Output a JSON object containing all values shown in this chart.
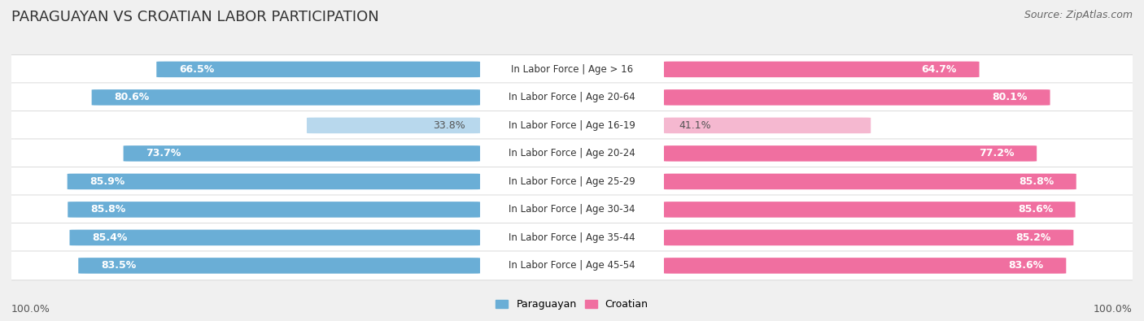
{
  "title": "PARAGUAYAN VS CROATIAN LABOR PARTICIPATION",
  "source": "Source: ZipAtlas.com",
  "categories": [
    "In Labor Force | Age > 16",
    "In Labor Force | Age 20-64",
    "In Labor Force | Age 16-19",
    "In Labor Force | Age 20-24",
    "In Labor Force | Age 25-29",
    "In Labor Force | Age 30-34",
    "In Labor Force | Age 35-44",
    "In Labor Force | Age 45-54"
  ],
  "paraguayan": [
    66.5,
    80.6,
    33.8,
    73.7,
    85.9,
    85.8,
    85.4,
    83.5
  ],
  "croatian": [
    64.7,
    80.1,
    41.1,
    77.2,
    85.8,
    85.6,
    85.2,
    83.6
  ],
  "paraguayan_color": "#6aaed6",
  "paraguayan_light_color": "#b8d8ed",
  "croatian_color": "#f06fa0",
  "croatian_light_color": "#f5b8d0",
  "row_bg_colors": [
    "#f0f0f0",
    "#e8e8e8"
  ],
  "label_color_white": "#ffffff",
  "label_color_dark": "#555555",
  "title_fontsize": 13,
  "source_fontsize": 9,
  "bar_label_fontsize": 9,
  "cat_label_fontsize": 8.5,
  "legend_fontsize": 9,
  "footer_fontsize": 9,
  "max_val": 100.0,
  "bg_color": "#f0f0f0"
}
